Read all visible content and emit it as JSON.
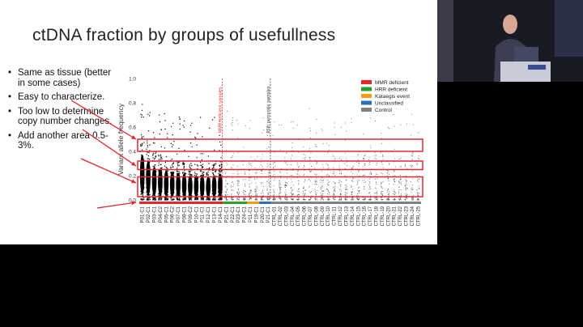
{
  "slide": {
    "title": "ctDNA fraction by groups of usefullness",
    "bullets": [
      "Same as tissue (better in some cases)",
      "Easy to characterize.",
      "Too low to determine copy number changes.",
      "Add another area 0.5-3%."
    ]
  },
  "chart_data": {
    "type": "scatter",
    "ylabel": "Variant allele frequency",
    "ylim": [
      0,
      1.0
    ],
    "yticks": [
      "0.0",
      "0.2",
      "0.4",
      "0.6",
      "0.8",
      "1.0"
    ],
    "categories": [
      "P01-C1",
      "P02-C1",
      "P03-C1",
      "P04-C2",
      "P05-C1",
      "P06-C2",
      "P07-C1",
      "P08-C1",
      "P09-C2",
      "P10-C1",
      "P11-C1",
      "P12-C1",
      "P13-C1",
      "P14-C1",
      "P21-C1",
      "P22-C1",
      "P23-C1",
      "P24-C1",
      "P11-C1",
      "P19-C1",
      "P20-C1",
      "P21-C1",
      "CTRL-01",
      "CTRL-02",
      "CTRL-03",
      "CTRL-04",
      "CTRL-05",
      "CTRL-06",
      "CTRL-07",
      "CTRL-08",
      "CTRL-09",
      "CTRL-10",
      "CTRL-11",
      "CTRL-12",
      "CTRL-13",
      "CTRL-14",
      "CTRL-15",
      "CTRL-16",
      "CTRL-17",
      "CTRL-18",
      "CTRL-19",
      "CTRL-20",
      "CTRL-21",
      "CTRL-22",
      "CTRL-23",
      "CTRL-24",
      "CTRL-25"
    ],
    "groups": [
      {
        "name": "MMR deficient",
        "color": "#e8252b",
        "count": 14
      },
      {
        "name": "HRR deficient",
        "color": "#2ca02c",
        "count": 4
      },
      {
        "name": "Kataegis event",
        "color": "#f39c12",
        "count": 2
      },
      {
        "name": "Unclassified",
        "color": "#2a6fb5",
        "count": 2
      },
      {
        "name": "Control",
        "color": "#808080",
        "count": 25
      }
    ],
    "column_peaks": [
      0.55,
      0.48,
      0.4,
      0.38,
      0.36,
      0.34,
      0.33,
      0.32,
      0.3,
      0.3,
      0.3,
      0.28,
      0.3,
      0.32,
      0.42,
      0.4,
      0.34,
      0.3,
      0.36,
      0.3,
      0.34,
      0.3,
      0.35,
      0.3,
      0.4,
      0.38,
      0.33,
      0.45,
      0.5,
      0.48,
      0.3,
      0.5,
      0.38,
      0.35,
      0.4,
      0.3,
      0.42,
      0.38,
      0.35,
      0.4,
      0.38,
      0.32,
      0.42,
      0.36,
      0.3,
      0.4,
      0.35
    ],
    "annotations": [
      "MMR deficient samples",
      "95th percentile samples"
    ],
    "highlight_bands": [
      {
        "name": "band-high",
        "ymin": 0.4,
        "ymax": 0.5
      },
      {
        "name": "band-mid",
        "ymin": 0.25,
        "ymax": 0.32
      },
      {
        "name": "band-low",
        "ymin": 0.0,
        "ymax": 0.19
      }
    ],
    "grid": false,
    "legend_position": "top-right"
  }
}
